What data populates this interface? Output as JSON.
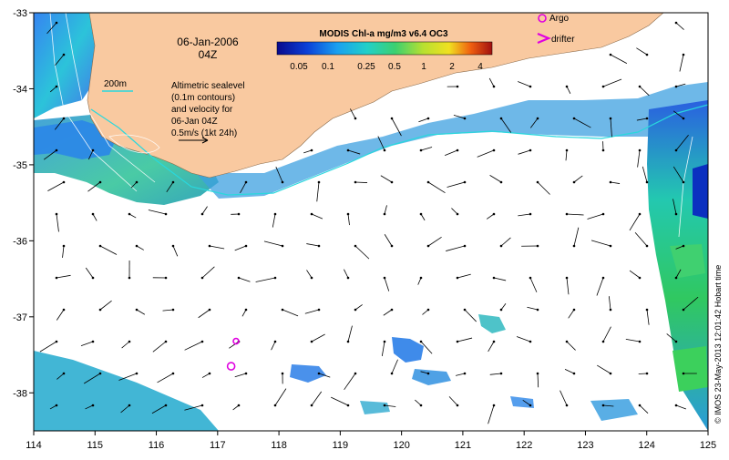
{
  "map": {
    "date_line": "06-Jan-2006",
    "time_line": "04Z",
    "isobath_label": "200m",
    "colorbar_title": "MODIS Chl-a mg/m3 v6.4 OC3",
    "colorbar_ticks": [
      "0.05",
      "0.1",
      "0.25",
      "0.5",
      "1",
      "2",
      "4"
    ],
    "legend_argo": "Argo",
    "legend_drifter": "drifter",
    "note_lines": [
      "Altimetric sealevel",
      "(0.1m contours)",
      "and velocity for",
      "06-Jan 04Z",
      "0.5m/s (1kt 24h)"
    ],
    "credit": "© IMOS 23-May-2013 12:01:42 Hobart time",
    "lon_ticks": [
      "114",
      "115",
      "116",
      "117",
      "118",
      "119",
      "120",
      "121",
      "122",
      "123",
      "124",
      "125"
    ],
    "lat_ticks": [
      "-33",
      "-34",
      "-35",
      "-36",
      "-37",
      "-38"
    ],
    "colors": {
      "land": "#f9c9a0",
      "isobath": "#29d8dd",
      "argo": "#e000e0",
      "arrow": "#000000"
    },
    "argo_floats": [
      {
        "lon": 117.3,
        "lat": -37.32
      },
      {
        "lon": 117.22,
        "lat": -37.65
      }
    ]
  }
}
